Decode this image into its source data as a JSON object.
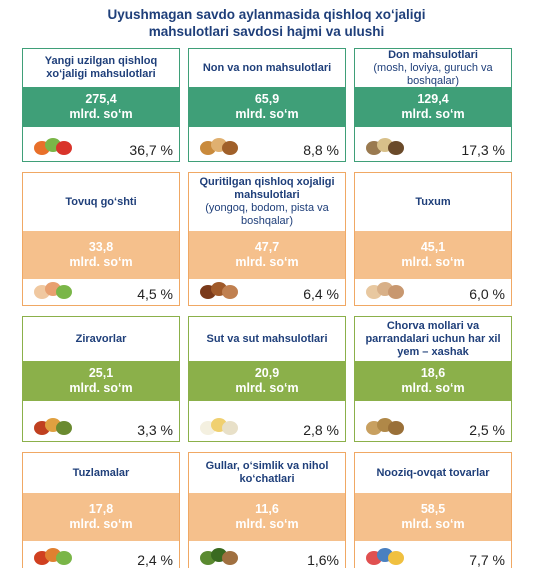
{
  "title": [
    "Uyushmagan savdo aylanmasida qishloq xo‘jaligi",
    "mahsulotlari savdosi hajmi va ulushi"
  ],
  "cards": [
    {
      "name": "Yangi uzilgan qishloq xo‘jaligi mahsulotlari",
      "value": "275,4",
      "unit": "mlrd. so‘m",
      "share": "36,7 %"
    },
    {
      "name": "Non va non mahsulotlari",
      "value": "65,9",
      "unit": "mlrd. so‘m",
      "share": "8,8 %"
    },
    {
      "name": "Don mahsulotlari",
      "note": "(mosh, loviya, guruch va boshqalar)",
      "value": "129,4",
      "unit": "mlrd. so‘m",
      "share": "17,3 %"
    },
    {
      "name": "Tovuq go‘shti",
      "value": "33,8",
      "unit": "mlrd. so‘m",
      "share": "4,5 %"
    },
    {
      "name": "Quritilgan qishloq xojaligi mahsulotlari",
      "note": "(yongoq, bodom, pista va boshqalar)",
      "value": "47,7",
      "unit": "mlrd. so‘m",
      "share": "6,4 %"
    },
    {
      "name": "Tuxum",
      "value": "45,1",
      "unit": "mlrd. so‘m",
      "share": "6,0 %"
    },
    {
      "name": "Ziravorlar",
      "value": "25,1",
      "unit": "mlrd. so‘m",
      "share": "3,3 %"
    },
    {
      "name": "Sut va sut mahsulotlari",
      "value": "20,9",
      "unit": "mlrd. so‘m",
      "share": "2,8 %"
    },
    {
      "name": "Chorva mollari va parrandalari uchun har xil yem – xashak",
      "value": "18,6",
      "unit": "mlrd. so‘m",
      "share": "2,5 %"
    },
    {
      "name": "Tuzlamalar",
      "value": "17,8",
      "unit": "mlrd. so‘m",
      "share": "2,4 %"
    },
    {
      "name": "Gullar, o‘simlik va nihol ko‘chatlari",
      "value": "11,6",
      "unit": "mlrd. so‘m",
      "share": "1,6%"
    },
    {
      "name": "Nooziq-ovqat tovarlar",
      "value": "58,5",
      "unit": "mlrd. so‘m",
      "share": "7,7 %"
    }
  ]
}
